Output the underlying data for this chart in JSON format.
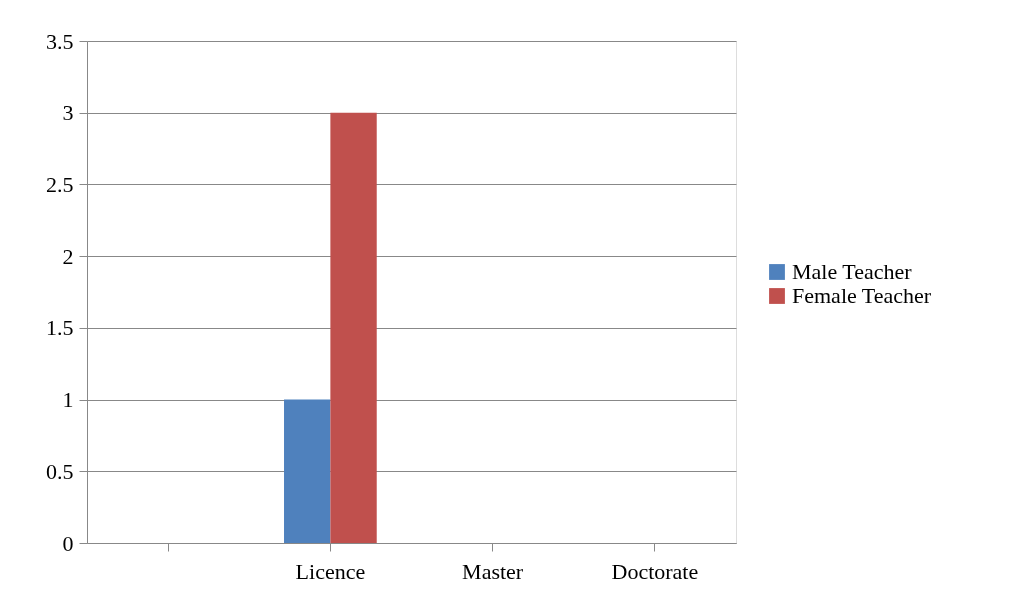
{
  "chart_data": {
    "type": "bar",
    "categories": [
      null,
      "Licence",
      "Master",
      "Doctorate"
    ],
    "series": [
      {
        "name": "Male Teacher",
        "color": "#4f81bd",
        "values": [
          null,
          1,
          null,
          null
        ]
      },
      {
        "name": "Female Teacher",
        "color": "#c0504d",
        "values": [
          null,
          3,
          null,
          null
        ]
      }
    ],
    "ylim": [
      0,
      3.5
    ],
    "yticks": [
      0,
      0.5,
      1,
      1.5,
      2,
      2.5,
      3,
      3.5
    ],
    "grid": "y",
    "legend": "right"
  }
}
